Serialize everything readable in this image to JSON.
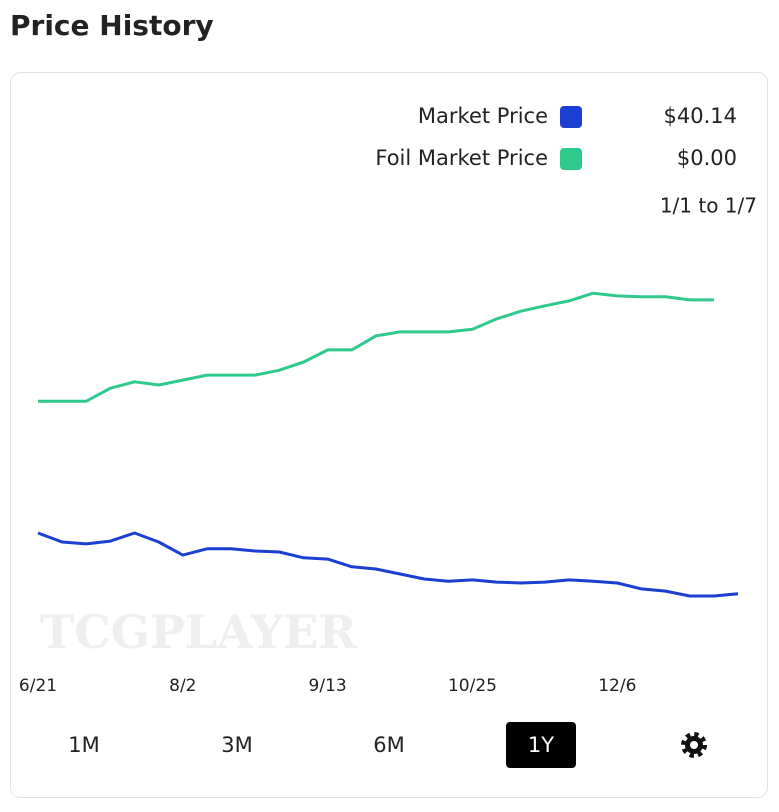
{
  "header": {
    "title": "Price History"
  },
  "chart_data": {
    "type": "line",
    "categories": [
      "6/21",
      null,
      null,
      null,
      null,
      null,
      "8/2",
      null,
      null,
      null,
      null,
      null,
      "9/13",
      null,
      null,
      null,
      null,
      null,
      "10/25",
      null,
      null,
      null,
      null,
      null,
      "12/6",
      null,
      null,
      null,
      null,
      null
    ],
    "series": [
      {
        "name": "Market Price",
        "color": "#1a3fd1",
        "legend_value": "$40.14",
        "values": [
          37.1,
          35.1,
          34.7,
          35.3,
          37.1,
          35.1,
          32.2,
          33.6,
          33.6,
          33.1,
          32.9,
          31.6,
          31.3,
          29.6,
          29.1,
          28.0,
          26.9,
          26.4,
          26.7,
          26.2,
          26.0,
          26.2,
          26.7,
          26.4,
          26.0,
          24.7,
          24.2,
          23.1,
          23.1,
          23.6
        ]
      },
      {
        "name": "Foil Market Price",
        "color": "#2fc98c",
        "legend_value": "$0.00",
        "values": [
          66.4,
          66.4,
          66.4,
          69.3,
          70.7,
          70.0,
          71.1,
          72.2,
          72.2,
          72.2,
          73.3,
          75.1,
          77.8,
          77.8,
          80.9,
          81.8,
          81.8,
          81.8,
          82.4,
          84.7,
          86.4,
          87.6,
          88.7,
          90.4,
          89.8,
          89.6,
          89.6,
          88.9,
          88.9,
          null
        ]
      }
    ],
    "ylim": [
      0,
      100
    ],
    "grid": false,
    "date_range": "1/1 to 1/7",
    "watermark": "TCGPLAYER"
  },
  "controls": {
    "buttons": [
      "1M",
      "3M",
      "6M",
      "1Y"
    ],
    "active": 3
  }
}
